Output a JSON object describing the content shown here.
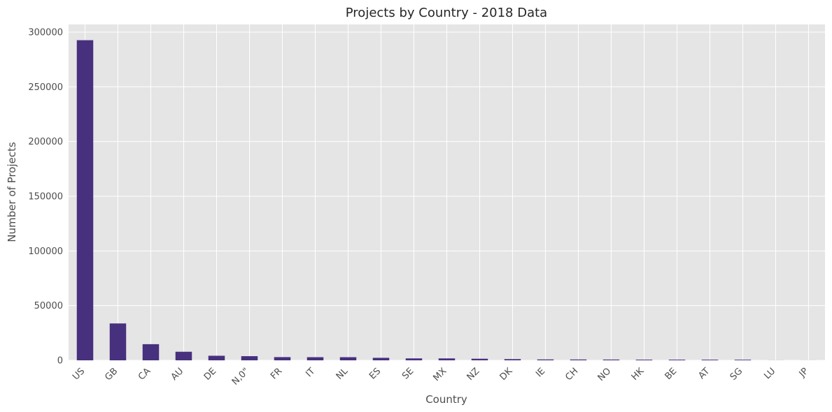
{
  "chart_data": {
    "type": "bar",
    "title": "Projects by Country - 2018 Data",
    "xlabel": "Country",
    "ylabel": "Number of Projects",
    "categories": [
      "US",
      "GB",
      "CA",
      "AU",
      "DE",
      "N,0\"",
      "FR",
      "IT",
      "NL",
      "ES",
      "SE",
      "MX",
      "NZ",
      "DK",
      "IE",
      "CH",
      "NO",
      "HK",
      "BE",
      "AT",
      "SG",
      "LU",
      "JP"
    ],
    "values": [
      292600,
      33700,
      14750,
      7840,
      4170,
      3800,
      2940,
      2870,
      2870,
      2280,
      1760,
      1750,
      1450,
      1110,
      810,
      760,
      710,
      620,
      620,
      600,
      560,
      60,
      40
    ],
    "ylim": [
      0,
      307000
    ],
    "yticks": [
      0,
      50000,
      100000,
      150000,
      200000,
      250000,
      300000
    ],
    "grid": true,
    "colors": {
      "bar": "#47307e",
      "plot_background": "#e5e5e5",
      "grid": "#ffffff"
    }
  }
}
